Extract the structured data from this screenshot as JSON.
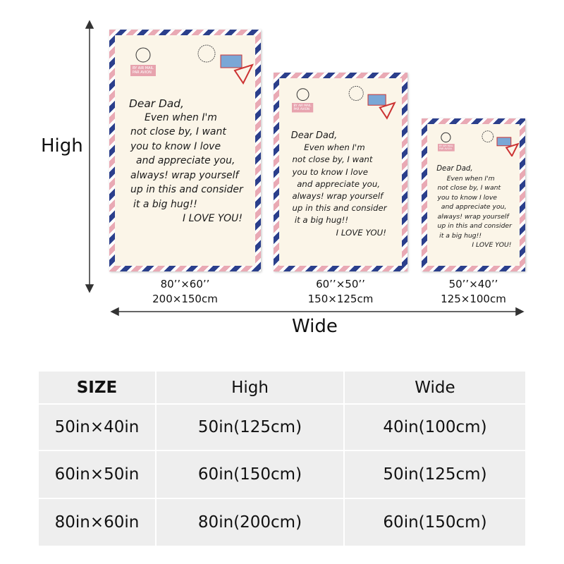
{
  "dimension_labels": {
    "high": "High",
    "wide": "Wide"
  },
  "letter": {
    "airmail": [
      "BY AIR MAIL",
      "PAR AVION"
    ],
    "lines": [
      "Dear Dad,",
      "Even when I'm",
      "not close by, I want",
      "you to know I love",
      "and appreciate you,",
      "always! wrap yourself",
      "up in this and consider",
      "it a big hug!!",
      "I LOVE YOU!"
    ]
  },
  "blankets": [
    {
      "size_in": "80’’×60’’",
      "size_cm": "200×150cm"
    },
    {
      "size_in": "60’’×50’’",
      "size_cm": "150×125cm"
    },
    {
      "size_in": "50’’×40’’",
      "size_cm": "125×100cm"
    }
  ],
  "table": {
    "header": [
      "SIZE",
      "High",
      "Wide"
    ],
    "rows": [
      [
        "50in×40in",
        "50in(125cm)",
        "40in(100cm)"
      ],
      [
        "60in×50in",
        "60in(150cm)",
        "50in(125cm)"
      ],
      [
        "80in×60in",
        "80in(200cm)",
        "60in(150cm)"
      ]
    ]
  }
}
